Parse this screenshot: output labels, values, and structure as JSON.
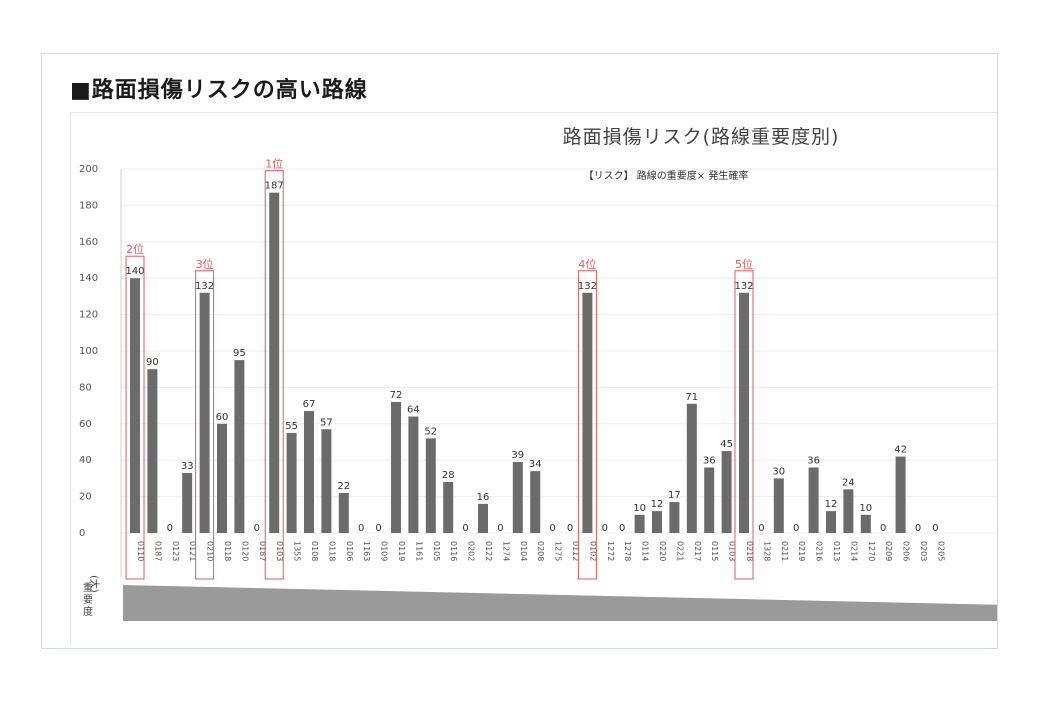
{
  "page": {
    "heading": "■路面損傷リスクの高い路線"
  },
  "chart_data": {
    "type": "bar",
    "title": "路面損傷リスク(路線重要度別)",
    "subtitle": "【リスク】 路線の重要度× 発生確率",
    "xlabel": "",
    "ylabel": "",
    "ylim": [
      0,
      200
    ],
    "yticks": [
      0,
      20,
      40,
      60,
      80,
      100,
      120,
      140,
      160,
      180,
      200
    ],
    "categories": [
      "0110",
      "0187",
      "0123",
      "0121",
      "0210",
      "0118",
      "0120",
      "0187",
      "0103",
      "1355",
      "0108",
      "0118",
      "0106",
      "1163",
      "0109",
      "0119",
      "1161",
      "0105",
      "0116",
      "0202",
      "0122",
      "1274",
      "0104",
      "0208",
      "1275",
      "0112",
      "0102",
      "1272",
      "1278",
      "0114",
      "0220",
      "0221",
      "0217",
      "0115",
      "0103",
      "0218",
      "1328",
      "0211",
      "0219",
      "0216",
      "0113",
      "0214",
      "1270",
      "0209",
      "0206",
      "0203",
      "0205"
    ],
    "values": [
      140,
      90,
      0,
      33,
      132,
      60,
      95,
      0,
      187,
      55,
      67,
      57,
      22,
      0,
      0,
      72,
      64,
      52,
      28,
      0,
      16,
      0,
      39,
      34,
      0,
      0,
      132,
      0,
      0,
      10,
      12,
      17,
      71,
      36,
      45,
      132,
      0,
      30,
      0,
      36,
      12,
      24,
      10,
      0,
      42,
      0,
      0
    ],
    "data_labels": [
      "140",
      "90",
      "0",
      "33",
      "132",
      "60",
      "95",
      "0",
      "187",
      "55",
      "67",
      "57",
      "22",
      "0",
      "0",
      "72",
      "64",
      "52",
      "28",
      "0",
      "16",
      "0",
      "39",
      "34",
      "0",
      "0",
      "132",
      "0",
      "0",
      "10",
      "12",
      "17",
      "71",
      "36",
      "45",
      "132",
      "0",
      "30",
      "0",
      "36",
      "12",
      "24",
      "10",
      "0",
      "42",
      "0",
      "0"
    ],
    "highlights": [
      {
        "index": 0,
        "rank": "2位"
      },
      {
        "index": 4,
        "rank": "3位"
      },
      {
        "index": 8,
        "rank": "1位"
      },
      {
        "index": 26,
        "rank": "4位"
      },
      {
        "index": 35,
        "rank": "5位"
      }
    ],
    "importance_axis_label": [
      "重",
      "要",
      "度",
      "(大)"
    ],
    "colors": {
      "bar": "#6b6b6b",
      "highlight": "#e35a5a",
      "grid": "#eeeeee",
      "wedge": "#9a9a9a"
    }
  }
}
